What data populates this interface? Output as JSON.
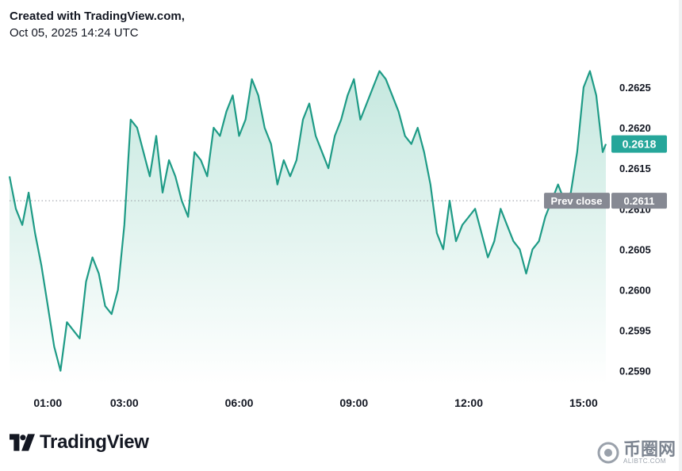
{
  "header": {
    "line1": "Created with TradingView.com,",
    "line2": "Oct 05, 2025 14:24 UTC"
  },
  "brand": {
    "name": "TradingView"
  },
  "watermark": {
    "text": "币圈网",
    "subtext": "ALIBTC.COM"
  },
  "colors": {
    "line": "#1e9b86",
    "area_top": "#c5e8df",
    "area_bottom": "#ffffff",
    "label_bg": "#26a69a",
    "prev_close_bg": "#868993",
    "axis_text": "#131722",
    "dotted": "#9598a1"
  },
  "chart_data": {
    "type": "area",
    "title": "",
    "xlabel": "",
    "ylabel": "",
    "x_ticks": [
      "01:00",
      "03:00",
      "06:00",
      "09:00",
      "12:00",
      "15:00"
    ],
    "y_ticks": [
      "0.2590",
      "0.2595",
      "0.2600",
      "0.2605",
      "0.2610",
      "0.2615",
      "0.2620",
      "0.2625"
    ],
    "y_range": [
      0.25883,
      0.26299
    ],
    "x_range": [
      "00:00",
      "15:35"
    ],
    "last_price": "0.2618",
    "prev_close": {
      "label": "Prev close",
      "value": "0.2611"
    },
    "grid": false,
    "series": [
      {
        "x": [
          "00:00",
          "00:10",
          "00:20",
          "00:30",
          "00:40",
          "00:50",
          "01:00",
          "01:10",
          "01:20",
          "01:30",
          "01:40",
          "01:50",
          "02:00",
          "02:10",
          "02:20",
          "02:30",
          "02:40",
          "02:50",
          "03:00",
          "03:10",
          "03:20",
          "03:30",
          "03:40",
          "03:50",
          "04:00",
          "04:10",
          "04:20",
          "04:30",
          "04:40",
          "04:50",
          "05:00",
          "05:10",
          "05:20",
          "05:30",
          "05:40",
          "05:50",
          "06:00",
          "06:10",
          "06:20",
          "06:30",
          "06:40",
          "06:50",
          "07:00",
          "07:10",
          "07:20",
          "07:30",
          "07:40",
          "07:50",
          "08:00",
          "08:10",
          "08:20",
          "08:30",
          "08:40",
          "08:50",
          "09:00",
          "09:10",
          "09:20",
          "09:30",
          "09:40",
          "09:50",
          "10:00",
          "10:10",
          "10:20",
          "10:30",
          "10:40",
          "10:50",
          "11:00",
          "11:10",
          "11:20",
          "11:30",
          "11:40",
          "11:50",
          "12:00",
          "12:10",
          "12:20",
          "12:30",
          "12:40",
          "12:50",
          "13:00",
          "13:10",
          "13:20",
          "13:30",
          "13:40",
          "13:50",
          "14:00",
          "14:10",
          "14:20",
          "14:30",
          "14:40",
          "14:50",
          "15:00",
          "15:10",
          "15:20",
          "15:30",
          "15:35"
        ],
        "y": [
          0.2614,
          0.261,
          0.2608,
          0.2612,
          0.2607,
          0.2603,
          0.2598,
          0.2593,
          0.259,
          0.2596,
          0.2595,
          0.2594,
          0.2601,
          0.2604,
          0.2602,
          0.2598,
          0.2597,
          0.26,
          0.2608,
          0.2621,
          0.262,
          0.2617,
          0.2614,
          0.2619,
          0.2612,
          0.2616,
          0.2614,
          0.2611,
          0.2609,
          0.2617,
          0.2616,
          0.2614,
          0.262,
          0.2619,
          0.2622,
          0.2624,
          0.2619,
          0.2621,
          0.2626,
          0.2624,
          0.262,
          0.2618,
          0.2613,
          0.2616,
          0.2614,
          0.2616,
          0.2621,
          0.2623,
          0.2619,
          0.2617,
          0.2615,
          0.2619,
          0.2621,
          0.2624,
          0.2626,
          0.2621,
          0.2623,
          0.2625,
          0.2627,
          0.2626,
          0.2624,
          0.2622,
          0.2619,
          0.2618,
          0.262,
          0.2617,
          0.2613,
          0.2607,
          0.2605,
          0.2611,
          0.2606,
          0.2608,
          0.2609,
          0.261,
          0.2607,
          0.2604,
          0.2606,
          0.261,
          0.2608,
          0.2606,
          0.2605,
          0.2602,
          0.2605,
          0.2606,
          0.2609,
          0.2611,
          0.2613,
          0.2611,
          0.2612,
          0.2617,
          0.2625,
          0.2627,
          0.2624,
          0.2617,
          0.2618
        ]
      }
    ]
  }
}
